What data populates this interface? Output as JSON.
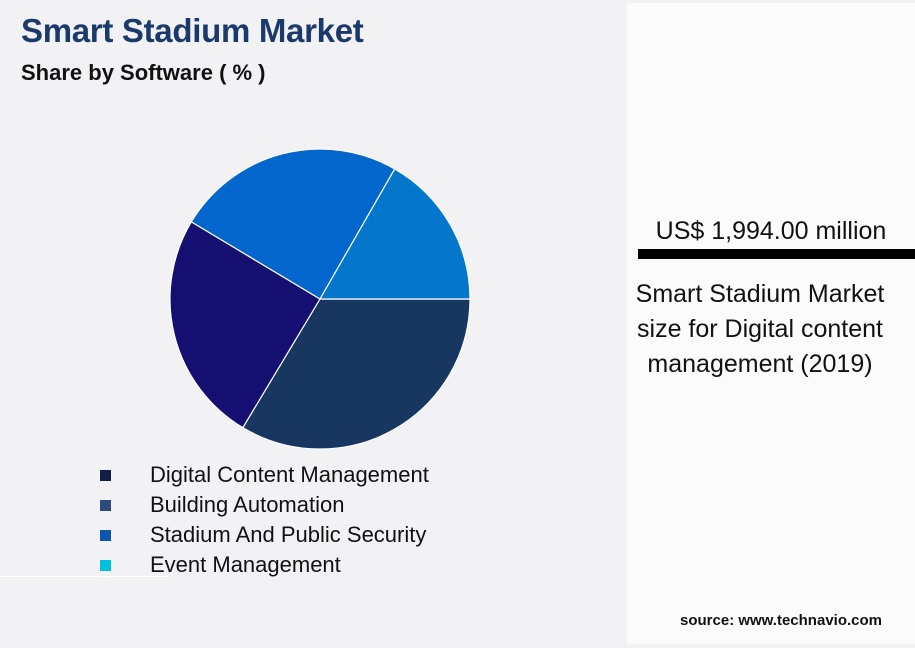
{
  "header": {
    "title": "Smart Stadium Market",
    "subtitle": "Share by Software ( % )"
  },
  "legend": {
    "items": [
      {
        "label": "Digital Content Management",
        "color": "#0f1f48"
      },
      {
        "label": "Building Automation",
        "color": "#2d4a80"
      },
      {
        "label": "Stadium And Public Security",
        "color": "#0b57b0"
      },
      {
        "label": "Event Management",
        "color": "#00c0e0"
      }
    ]
  },
  "side_panel": {
    "value": "US$ 1,994.00 million",
    "description": "Smart Stadium Market size for Digital content management (2019)"
  },
  "footer": {
    "source": "source: www.technavio.com"
  },
  "colors": {
    "title": "#1b3a6b",
    "background": "#f2f2f5",
    "panel": "#fbfbfc"
  },
  "chart_data": {
    "type": "pie",
    "title": "Smart Stadium Market",
    "subtitle": "Share by Software ( % )",
    "categories": [
      "Digital Content Management",
      "Building Automation",
      "Stadium And Public Security",
      "Event Management"
    ],
    "values": [
      33.6,
      25.0,
      24.7,
      16.7
    ],
    "slice_colors": [
      "#173660",
      "#160f72",
      "#0366cc",
      "#0477cc"
    ],
    "legend_position": "bottom",
    "annotation": "US$ 1,994.00 million — Smart Stadium Market size for Digital content management (2019)",
    "source": "www.technavio.com"
  }
}
